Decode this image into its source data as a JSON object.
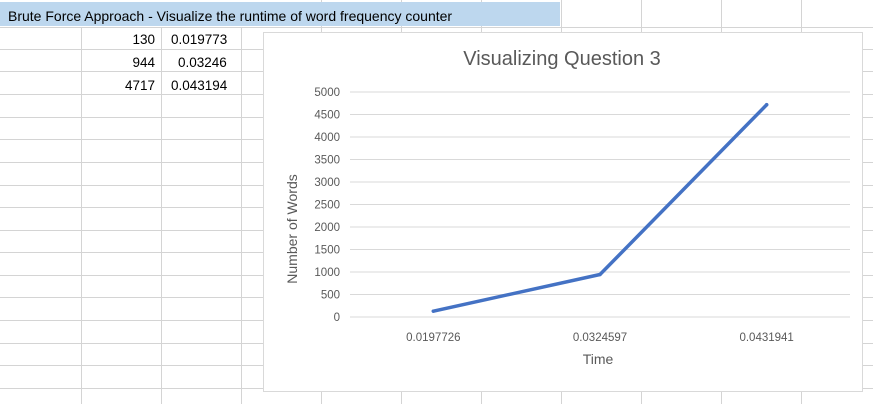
{
  "sheet": {
    "header": "Brute Force Approach - Visualize the runtime of word frequency counter",
    "rows": [
      {
        "words": "130",
        "time": "0.019773"
      },
      {
        "words": "944",
        "time": "0.03246"
      },
      {
        "words": "4717",
        "time": "0.043194"
      }
    ]
  },
  "chart_data": {
    "type": "line",
    "title": "Visualizing Question 3",
    "xlabel": "Time",
    "ylabel": "Number of Words",
    "categories": [
      "0.0197726",
      "0.0324597",
      "0.0431941"
    ],
    "series": [
      {
        "values": [
          130,
          944,
          4717
        ],
        "color": "#4472c4"
      }
    ],
    "ylim": [
      0,
      5000
    ],
    "yticks": [
      "0",
      "500",
      "1000",
      "1500",
      "2000",
      "2500",
      "3000",
      "3500",
      "4000",
      "4500",
      "5000"
    ],
    "grid": true
  }
}
